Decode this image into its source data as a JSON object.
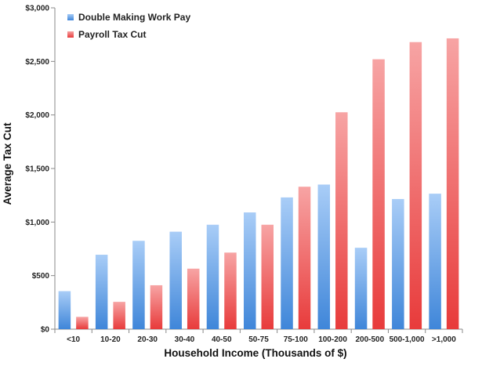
{
  "chart_data": {
    "type": "bar",
    "title": "",
    "xlabel": "Household Income (Thousands of $)",
    "ylabel": "Average Tax Cut",
    "categories": [
      "<10",
      "10-20",
      "20-30",
      "30-40",
      "40-50",
      "50-75",
      "75-100",
      "100-200",
      "200-500",
      "500-1,000",
      ">1,000"
    ],
    "series": [
      {
        "name": "Double Making Work Pay",
        "color_top": "#a9cdf7",
        "color_bottom": "#3f86d9",
        "values": [
          355,
          695,
          825,
          910,
          975,
          1090,
          1230,
          1350,
          760,
          1215,
          1265
        ]
      },
      {
        "name": "Payroll Tax Cut",
        "color_top": "#f7a4a4",
        "color_bottom": "#e83b3b",
        "values": [
          115,
          255,
          410,
          565,
          715,
          975,
          1330,
          2025,
          2520,
          2680,
          2715
        ]
      }
    ],
    "ylim": [
      0,
      3000
    ],
    "yticks": [
      0,
      500,
      1000,
      1500,
      2000,
      2500,
      3000
    ],
    "ytick_labels": [
      "$0",
      "$500",
      "$1,000",
      "$1,500",
      "$2,000",
      "$2,500",
      "$3,000"
    ],
    "grid": false,
    "legend_position": "top-left"
  }
}
